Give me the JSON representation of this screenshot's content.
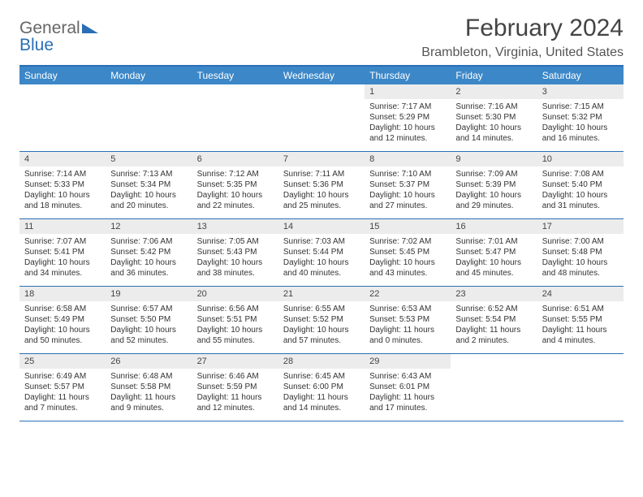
{
  "logo": {
    "part1": "General",
    "part2": "Blue"
  },
  "title": "February 2024",
  "location": "Brambleton, Virginia, United States",
  "colors": {
    "header_bar": "#3c87c7",
    "rule": "#2a6fb5",
    "daynum_bg": "#ececec",
    "text": "#333333"
  },
  "weekdays": [
    "Sunday",
    "Monday",
    "Tuesday",
    "Wednesday",
    "Thursday",
    "Friday",
    "Saturday"
  ],
  "weeks": [
    [
      null,
      null,
      null,
      null,
      {
        "n": "1",
        "sunrise": "Sunrise: 7:17 AM",
        "sunset": "Sunset: 5:29 PM",
        "daylight": "Daylight: 10 hours and 12 minutes."
      },
      {
        "n": "2",
        "sunrise": "Sunrise: 7:16 AM",
        "sunset": "Sunset: 5:30 PM",
        "daylight": "Daylight: 10 hours and 14 minutes."
      },
      {
        "n": "3",
        "sunrise": "Sunrise: 7:15 AM",
        "sunset": "Sunset: 5:32 PM",
        "daylight": "Daylight: 10 hours and 16 minutes."
      }
    ],
    [
      {
        "n": "4",
        "sunrise": "Sunrise: 7:14 AM",
        "sunset": "Sunset: 5:33 PM",
        "daylight": "Daylight: 10 hours and 18 minutes."
      },
      {
        "n": "5",
        "sunrise": "Sunrise: 7:13 AM",
        "sunset": "Sunset: 5:34 PM",
        "daylight": "Daylight: 10 hours and 20 minutes."
      },
      {
        "n": "6",
        "sunrise": "Sunrise: 7:12 AM",
        "sunset": "Sunset: 5:35 PM",
        "daylight": "Daylight: 10 hours and 22 minutes."
      },
      {
        "n": "7",
        "sunrise": "Sunrise: 7:11 AM",
        "sunset": "Sunset: 5:36 PM",
        "daylight": "Daylight: 10 hours and 25 minutes."
      },
      {
        "n": "8",
        "sunrise": "Sunrise: 7:10 AM",
        "sunset": "Sunset: 5:37 PM",
        "daylight": "Daylight: 10 hours and 27 minutes."
      },
      {
        "n": "9",
        "sunrise": "Sunrise: 7:09 AM",
        "sunset": "Sunset: 5:39 PM",
        "daylight": "Daylight: 10 hours and 29 minutes."
      },
      {
        "n": "10",
        "sunrise": "Sunrise: 7:08 AM",
        "sunset": "Sunset: 5:40 PM",
        "daylight": "Daylight: 10 hours and 31 minutes."
      }
    ],
    [
      {
        "n": "11",
        "sunrise": "Sunrise: 7:07 AM",
        "sunset": "Sunset: 5:41 PM",
        "daylight": "Daylight: 10 hours and 34 minutes."
      },
      {
        "n": "12",
        "sunrise": "Sunrise: 7:06 AM",
        "sunset": "Sunset: 5:42 PM",
        "daylight": "Daylight: 10 hours and 36 minutes."
      },
      {
        "n": "13",
        "sunrise": "Sunrise: 7:05 AM",
        "sunset": "Sunset: 5:43 PM",
        "daylight": "Daylight: 10 hours and 38 minutes."
      },
      {
        "n": "14",
        "sunrise": "Sunrise: 7:03 AM",
        "sunset": "Sunset: 5:44 PM",
        "daylight": "Daylight: 10 hours and 40 minutes."
      },
      {
        "n": "15",
        "sunrise": "Sunrise: 7:02 AM",
        "sunset": "Sunset: 5:45 PM",
        "daylight": "Daylight: 10 hours and 43 minutes."
      },
      {
        "n": "16",
        "sunrise": "Sunrise: 7:01 AM",
        "sunset": "Sunset: 5:47 PM",
        "daylight": "Daylight: 10 hours and 45 minutes."
      },
      {
        "n": "17",
        "sunrise": "Sunrise: 7:00 AM",
        "sunset": "Sunset: 5:48 PM",
        "daylight": "Daylight: 10 hours and 48 minutes."
      }
    ],
    [
      {
        "n": "18",
        "sunrise": "Sunrise: 6:58 AM",
        "sunset": "Sunset: 5:49 PM",
        "daylight": "Daylight: 10 hours and 50 minutes."
      },
      {
        "n": "19",
        "sunrise": "Sunrise: 6:57 AM",
        "sunset": "Sunset: 5:50 PM",
        "daylight": "Daylight: 10 hours and 52 minutes."
      },
      {
        "n": "20",
        "sunrise": "Sunrise: 6:56 AM",
        "sunset": "Sunset: 5:51 PM",
        "daylight": "Daylight: 10 hours and 55 minutes."
      },
      {
        "n": "21",
        "sunrise": "Sunrise: 6:55 AM",
        "sunset": "Sunset: 5:52 PM",
        "daylight": "Daylight: 10 hours and 57 minutes."
      },
      {
        "n": "22",
        "sunrise": "Sunrise: 6:53 AM",
        "sunset": "Sunset: 5:53 PM",
        "daylight": "Daylight: 11 hours and 0 minutes."
      },
      {
        "n": "23",
        "sunrise": "Sunrise: 6:52 AM",
        "sunset": "Sunset: 5:54 PM",
        "daylight": "Daylight: 11 hours and 2 minutes."
      },
      {
        "n": "24",
        "sunrise": "Sunrise: 6:51 AM",
        "sunset": "Sunset: 5:55 PM",
        "daylight": "Daylight: 11 hours and 4 minutes."
      }
    ],
    [
      {
        "n": "25",
        "sunrise": "Sunrise: 6:49 AM",
        "sunset": "Sunset: 5:57 PM",
        "daylight": "Daylight: 11 hours and 7 minutes."
      },
      {
        "n": "26",
        "sunrise": "Sunrise: 6:48 AM",
        "sunset": "Sunset: 5:58 PM",
        "daylight": "Daylight: 11 hours and 9 minutes."
      },
      {
        "n": "27",
        "sunrise": "Sunrise: 6:46 AM",
        "sunset": "Sunset: 5:59 PM",
        "daylight": "Daylight: 11 hours and 12 minutes."
      },
      {
        "n": "28",
        "sunrise": "Sunrise: 6:45 AM",
        "sunset": "Sunset: 6:00 PM",
        "daylight": "Daylight: 11 hours and 14 minutes."
      },
      {
        "n": "29",
        "sunrise": "Sunrise: 6:43 AM",
        "sunset": "Sunset: 6:01 PM",
        "daylight": "Daylight: 11 hours and 17 minutes."
      },
      null,
      null
    ]
  ]
}
